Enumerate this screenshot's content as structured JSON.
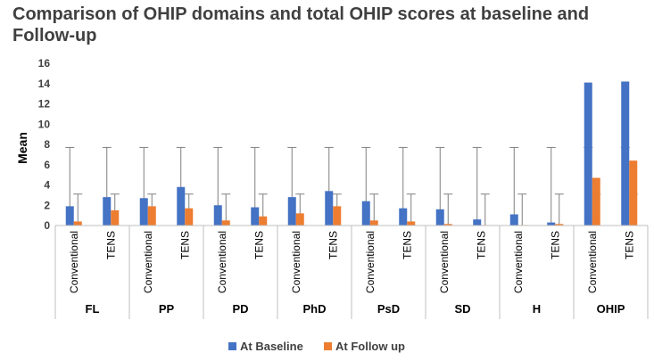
{
  "chart_data": {
    "type": "bar",
    "title": "Comparison of OHIP domains and total OHIP scores at baseline and Follow-up",
    "ylabel": "Mean",
    "ylim": [
      0,
      16
    ],
    "yticks": [
      0,
      2,
      4,
      6,
      8,
      10,
      12,
      14,
      16
    ],
    "grid": false,
    "legend_position": "bottom",
    "groups": [
      {
        "name": "FL",
        "categories": [
          "Conventional",
          "TENS"
        ]
      },
      {
        "name": "PP",
        "categories": [
          "Conventional",
          "TENS"
        ]
      },
      {
        "name": "PD",
        "categories": [
          "Conventional",
          "TENS"
        ]
      },
      {
        "name": "PhD",
        "categories": [
          "Conventional",
          "TENS"
        ]
      },
      {
        "name": "PsD",
        "categories": [
          "Conventional",
          "TENS"
        ]
      },
      {
        "name": "SD",
        "categories": [
          "Conventional",
          "TENS"
        ]
      },
      {
        "name": "H",
        "categories": [
          "Conventional",
          "TENS"
        ]
      },
      {
        "name": "OHIP",
        "categories": [
          "Conventional",
          "TENS"
        ]
      }
    ],
    "series": [
      {
        "name": "At Baseline",
        "color": "#4472C4",
        "values": [
          1.9,
          2.8,
          2.7,
          3.8,
          2.0,
          1.8,
          2.8,
          3.4,
          2.4,
          1.7,
          1.6,
          0.6,
          1.1,
          0.3,
          14.1,
          14.2
        ],
        "error_top": 7.7
      },
      {
        "name": "At Follow up",
        "color": "#ED7D31",
        "values": [
          0.4,
          1.5,
          1.9,
          1.7,
          0.5,
          0.9,
          1.2,
          1.9,
          0.5,
          0.4,
          0.15,
          0.05,
          0.05,
          0.15,
          4.7,
          6.4
        ],
        "error_top": 3.1
      }
    ]
  }
}
